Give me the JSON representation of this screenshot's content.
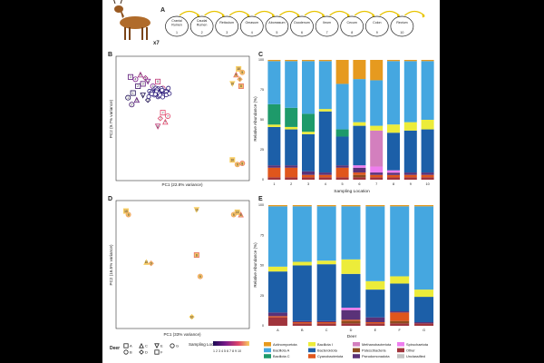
{
  "panel_labels": {
    "a": "A",
    "b": "B",
    "c": "C",
    "d": "D",
    "e": "E"
  },
  "deer_count": "x7",
  "gut_sections": [
    {
      "name": "Cranial Rumen",
      "num": "1"
    },
    {
      "name": "Caudal Rumen",
      "num": "2"
    },
    {
      "name": "Reticulum",
      "num": "3"
    },
    {
      "name": "Omasum",
      "num": "4"
    },
    {
      "name": "Abomasum",
      "num": "5"
    },
    {
      "name": "Duodenum",
      "num": "6"
    },
    {
      "name": "Ileum",
      "num": "7"
    },
    {
      "name": "Cecum",
      "num": "8"
    },
    {
      "name": "Colon",
      "num": "9"
    },
    {
      "name": "Rectum",
      "num": "10"
    }
  ],
  "pca_b": {
    "xlabel": "PC1 (22.8% variance)",
    "ylabel": "PC2 (9.7% variance)"
  },
  "pca_d": {
    "xlabel": "PC1 (33% variance)",
    "ylabel": "PC2 (16.5% variance)"
  },
  "legend": {
    "deer_title": "Deer",
    "deer_ids": [
      "A",
      "B",
      "C",
      "D",
      "E",
      "F",
      "G"
    ],
    "sampling_title": "Sampling Location",
    "sampling_ticks": "1 2 3 4 5 6 7 8 9 10"
  },
  "taxa_colors": {
    "Actinomycetota": "#e69a1f",
    "Bacillota A": "#45a7e0",
    "Bacillota C": "#1e9a6a",
    "Bacillota I": "#ecec3a",
    "Bacteroidota": "#1c5fa8",
    "Cyanobacteriota": "#e0561c",
    "Methanobacteriota": "#d37fbe",
    "Patescibacteria": "#8d4c1e",
    "Pseudomonadota": "#5a3278",
    "Spirochaetota": "#ee7dee",
    "Other": "#a0343c",
    "Unclassified": "#c4c4c4"
  },
  "chart_data": [
    {
      "type": "bar",
      "panel": "C",
      "stacked": true,
      "xlabel": "Sampling Location",
      "ylabel": "Relative Abundance (%)",
      "ylim": [
        0,
        100
      ],
      "yticks": [
        "0",
        "25",
        "50",
        "75",
        "100"
      ],
      "categories": [
        "1",
        "2",
        "3",
        "4",
        "5",
        "6",
        "7",
        "8",
        "9",
        "10"
      ],
      "series": [
        {
          "name": "Other",
          "values": [
            2,
            2,
            2,
            2,
            2,
            2,
            2,
            2,
            2,
            2
          ]
        },
        {
          "name": "Patescibacteria",
          "values": [
            0,
            0,
            0,
            0,
            0,
            2,
            0,
            0,
            0,
            0
          ]
        },
        {
          "name": "Cyanobacteriota",
          "values": [
            8,
            8,
            2,
            2,
            8,
            2,
            2,
            2,
            2,
            2
          ]
        },
        {
          "name": "Pseudomonadota",
          "values": [
            2,
            2,
            3,
            2,
            2,
            4,
            2,
            2,
            2,
            2
          ]
        },
        {
          "name": "Spirochaetota",
          "values": [
            0,
            0,
            0,
            0,
            0,
            2,
            5,
            2,
            0,
            0
          ]
        },
        {
          "name": "Methanobacteriota",
          "values": [
            0,
            0,
            0,
            0,
            0,
            0,
            30,
            0,
            0,
            0
          ]
        },
        {
          "name": "Bacteroidota",
          "values": [
            32,
            30,
            31,
            51,
            24,
            33,
            0,
            32,
            35,
            36
          ]
        },
        {
          "name": "Bacillota I",
          "values": [
            2,
            2,
            2,
            2,
            0,
            3,
            4,
            7,
            7,
            8
          ]
        },
        {
          "name": "Bacillota C",
          "values": [
            17,
            16,
            15,
            0,
            6,
            0,
            0,
            0,
            0,
            0
          ]
        },
        {
          "name": "Bacillota A",
          "values": [
            36,
            39,
            44,
            40,
            38,
            36,
            38,
            54,
            51,
            49
          ]
        },
        {
          "name": "Actinomycetota",
          "values": [
            1,
            1,
            1,
            1,
            20,
            16,
            17,
            1,
            1,
            1
          ]
        }
      ]
    },
    {
      "type": "bar",
      "panel": "E",
      "stacked": true,
      "xlabel": "Deer",
      "ylabel": "Relative Abundance (%)",
      "ylim": [
        0,
        100
      ],
      "yticks": [
        "0",
        "25",
        "50",
        "75",
        "100"
      ],
      "categories": [
        "A",
        "B",
        "C",
        "D",
        "E",
        "F",
        "G"
      ],
      "series": [
        {
          "name": "Other",
          "values": [
            7,
            2,
            2,
            2,
            2,
            2,
            2
          ]
        },
        {
          "name": "Patescibacteria",
          "values": [
            0,
            0,
            0,
            2,
            0,
            2,
            0
          ]
        },
        {
          "name": "Cyanobacteriota",
          "values": [
            1,
            1,
            1,
            1,
            1,
            7,
            0
          ]
        },
        {
          "name": "Pseudomonadota",
          "values": [
            3,
            1,
            1,
            8,
            4,
            1,
            1
          ]
        },
        {
          "name": "Spirochaetota",
          "values": [
            0,
            0,
            0,
            2,
            0,
            0,
            0
          ]
        },
        {
          "name": "Bacteroidota",
          "values": [
            34,
            46,
            47,
            28,
            23,
            23,
            21
          ]
        },
        {
          "name": "Bacillota I",
          "values": [
            4,
            3,
            3,
            12,
            7,
            6,
            6
          ]
        },
        {
          "name": "Bacillota A",
          "values": [
            50,
            46,
            45,
            44,
            62,
            58,
            69
          ]
        },
        {
          "name": "Actinomycetota",
          "values": [
            1,
            1,
            1,
            1,
            1,
            1,
            1
          ]
        }
      ]
    },
    {
      "type": "scatter",
      "panel": "B",
      "xlabel": "PC1 (22.8% variance)",
      "ylabel": "PC2 (9.7% variance)",
      "xlim": [
        0,
        1
      ],
      "ylim": [
        0,
        1
      ],
      "points": [
        {
          "x": 0.08,
          "y": 0.86,
          "loc": 3,
          "deer": "A"
        },
        {
          "x": 0.12,
          "y": 0.84,
          "loc": 4,
          "deer": "B"
        },
        {
          "x": 0.16,
          "y": 0.88,
          "loc": 5,
          "deer": "C"
        },
        {
          "x": 0.2,
          "y": 0.85,
          "loc": 5,
          "deer": "D"
        },
        {
          "x": 0.22,
          "y": 0.82,
          "loc": 4,
          "deer": "E"
        },
        {
          "x": 0.18,
          "y": 0.8,
          "loc": 3,
          "deer": "F"
        },
        {
          "x": 0.26,
          "y": 0.78,
          "loc": 4,
          "deer": "G"
        },
        {
          "x": 0.14,
          "y": 0.78,
          "loc": 2,
          "deer": "A"
        },
        {
          "x": 0.28,
          "y": 0.75,
          "loc": 2,
          "deer": "B"
        },
        {
          "x": 0.3,
          "y": 0.72,
          "loc": 2,
          "deer": "C"
        },
        {
          "x": 0.24,
          "y": 0.73,
          "loc": 2,
          "deer": "D"
        },
        {
          "x": 0.18,
          "y": 0.7,
          "loc": 1,
          "deer": "E"
        },
        {
          "x": 0.1,
          "y": 0.72,
          "loc": 1,
          "deer": "F"
        },
        {
          "x": 0.06,
          "y": 0.68,
          "loc": 1,
          "deer": "G"
        },
        {
          "x": 0.3,
          "y": 0.82,
          "loc": 6,
          "deer": "A"
        },
        {
          "x": 0.34,
          "y": 0.76,
          "loc": 6,
          "deer": "B"
        },
        {
          "x": 0.13,
          "y": 0.66,
          "loc": 3,
          "deer": "C"
        },
        {
          "x": 0.22,
          "y": 0.66,
          "loc": 1,
          "deer": "D"
        },
        {
          "x": 0.37,
          "y": 0.72,
          "loc": 5,
          "deer": "E"
        },
        {
          "x": 0.09,
          "y": 0.62,
          "loc": 2,
          "deer": "G"
        },
        {
          "x": 0.34,
          "y": 0.55,
          "loc": 7,
          "deer": "A"
        },
        {
          "x": 0.38,
          "y": 0.52,
          "loc": 7,
          "deer": "B"
        },
        {
          "x": 0.36,
          "y": 0.47,
          "loc": 7,
          "deer": "C"
        },
        {
          "x": 0.32,
          "y": 0.5,
          "loc": 7,
          "deer": "D"
        },
        {
          "x": 0.3,
          "y": 0.43,
          "loc": 6,
          "deer": "E"
        },
        {
          "x": 0.95,
          "y": 0.93,
          "loc": 10,
          "deer": "A"
        },
        {
          "x": 0.98,
          "y": 0.9,
          "loc": 9,
          "deer": "B"
        },
        {
          "x": 0.93,
          "y": 0.88,
          "loc": 8,
          "deer": "C"
        },
        {
          "x": 0.96,
          "y": 0.84,
          "loc": 9,
          "deer": "D"
        },
        {
          "x": 0.9,
          "y": 0.8,
          "loc": 10,
          "deer": "E"
        },
        {
          "x": 0.97,
          "y": 0.78,
          "loc": 8,
          "deer": "F"
        },
        {
          "x": 0.9,
          "y": 0.14,
          "loc": 10,
          "deer": "A"
        },
        {
          "x": 0.94,
          "y": 0.1,
          "loc": 9,
          "deer": "B"
        },
        {
          "x": 0.98,
          "y": 0.11,
          "loc": 8,
          "deer": "G"
        }
      ]
    },
    {
      "type": "scatter",
      "panel": "D",
      "xlabel": "PC1 (33% variance)",
      "ylabel": "PC2 (16.5% variance)",
      "xlim": [
        0,
        1
      ],
      "ylim": [
        0,
        1
      ],
      "points": [
        {
          "x": 0.03,
          "y": 0.95,
          "loc": 10,
          "deer": "A"
        },
        {
          "x": 0.05,
          "y": 0.92,
          "loc": 9,
          "deer": "B"
        },
        {
          "x": 0.2,
          "y": 0.52,
          "loc": 10,
          "deer": "C"
        },
        {
          "x": 0.24,
          "y": 0.51,
          "loc": 9,
          "deer": "D"
        },
        {
          "x": 0.62,
          "y": 0.96,
          "loc": 10,
          "deer": "E"
        },
        {
          "x": 0.62,
          "y": 0.58,
          "loc": 8,
          "deer": "F"
        },
        {
          "x": 0.65,
          "y": 0.4,
          "loc": 9,
          "deer": "G"
        },
        {
          "x": 0.96,
          "y": 0.94,
          "loc": 10,
          "deer": "A"
        },
        {
          "x": 0.93,
          "y": 0.92,
          "loc": 9,
          "deer": "B"
        },
        {
          "x": 0.99,
          "y": 0.92,
          "loc": 8,
          "deer": "C"
        },
        {
          "x": 0.58,
          "y": 0.06,
          "loc": 10,
          "deer": "D"
        }
      ]
    }
  ]
}
